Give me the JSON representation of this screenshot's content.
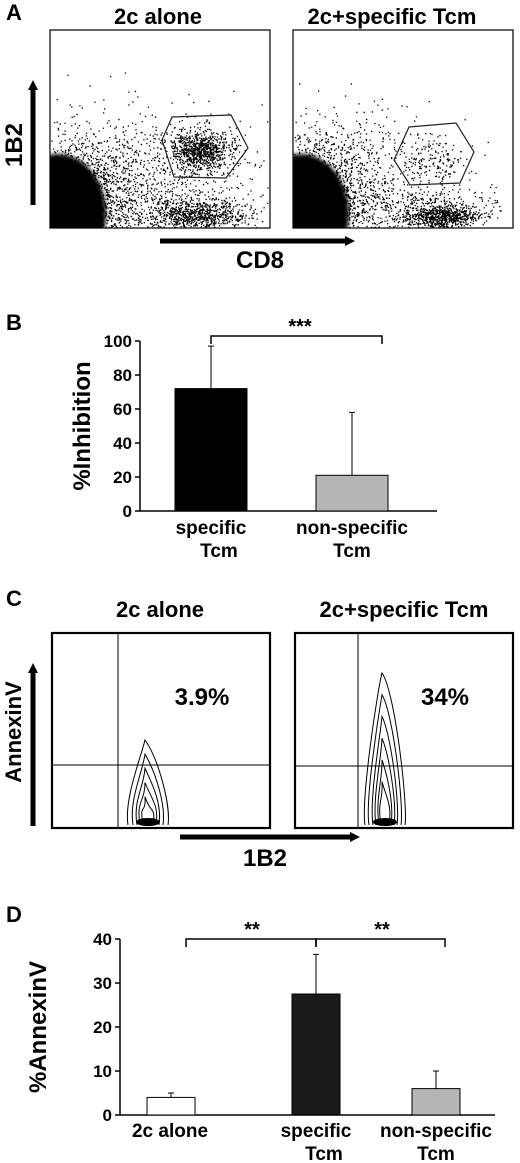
{
  "panelA": {
    "letter": "A",
    "plots": [
      {
        "title": "2c alone"
      },
      {
        "title": "2c+specific Tcm"
      }
    ],
    "yaxis_label": "1B2",
    "xaxis_label": "CD8"
  },
  "panelB": {
    "letter": "B",
    "significance": "***"
  },
  "panelC": {
    "letter": "C",
    "plots": [
      {
        "title": "2c alone",
        "percent": "3.9%"
      },
      {
        "title": "2c+specific Tcm",
        "percent": "34%"
      }
    ],
    "yaxis_label": "AnnexinV",
    "xaxis_label": "1B2"
  },
  "panelD": {
    "letter": "D",
    "significance": [
      "**",
      "**"
    ]
  },
  "chart_data": [
    {
      "type": "bar",
      "panel": "B",
      "categories": [
        [
          "specific",
          "Tcm"
        ],
        [
          "non-specific",
          "Tcm"
        ]
      ],
      "values": [
        72,
        21
      ],
      "errors": [
        25,
        37
      ],
      "colors": [
        "#000000",
        "#b5b5b5"
      ],
      "ylabel": "%Inhibition",
      "ylim": [
        0,
        100
      ],
      "yticks": [
        0,
        20,
        40,
        60,
        80,
        100
      ],
      "grid": false
    },
    {
      "type": "bar",
      "panel": "D",
      "categories": [
        [
          "2c alone"
        ],
        [
          "specific",
          "Tcm"
        ],
        [
          "non-specific",
          "Tcm"
        ]
      ],
      "values": [
        4,
        27.5,
        6
      ],
      "errors": [
        1,
        9,
        4
      ],
      "colors": [
        "#ffffff",
        "#1a1a1a",
        "#b5b5b5"
      ],
      "ylabel": "%AnnexinV",
      "ylim": [
        0,
        40
      ],
      "yticks": [
        0,
        10,
        20,
        30,
        40
      ],
      "grid": false
    }
  ]
}
